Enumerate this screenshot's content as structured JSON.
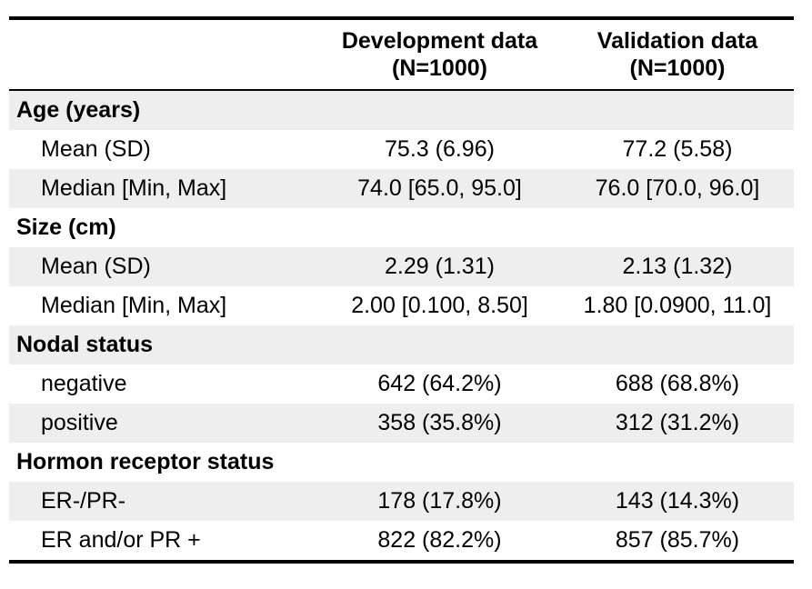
{
  "header": {
    "col_label": "",
    "development": {
      "title": "Development data",
      "n": "(N=1000)"
    },
    "validation": {
      "title": "Validation data",
      "n": "(N=1000)"
    }
  },
  "groups": [
    {
      "title": "Age (years)",
      "rows": [
        {
          "label": "Mean (SD)",
          "development": "75.3 (6.96)",
          "validation": "77.2 (5.58)"
        },
        {
          "label": "Median [Min, Max]",
          "development": "74.0 [65.0, 95.0]",
          "validation": "76.0 [70.0, 96.0]"
        }
      ]
    },
    {
      "title": "Size (cm)",
      "rows": [
        {
          "label": "Mean (SD)",
          "development": "2.29 (1.31)",
          "validation": "2.13 (1.32)"
        },
        {
          "label": "Median [Min, Max]",
          "development": "2.00 [0.100, 8.50]",
          "validation": "1.80 [0.0900, 11.0]"
        }
      ]
    },
    {
      "title": "Nodal status",
      "rows": [
        {
          "label": "negative",
          "development": "642 (64.2%)",
          "validation": "688 (68.8%)"
        },
        {
          "label": "positive",
          "development": "358 (35.8%)",
          "validation": "312 (31.2%)"
        }
      ]
    },
    {
      "title": "Hormon receptor status",
      "rows": [
        {
          "label": "ER-/PR-",
          "development": "178 (17.8%)",
          "validation": "143 (14.3%)"
        },
        {
          "label": "ER and/or PR +",
          "development": "822 (82.2%)",
          "validation": "857 (85.7%)"
        }
      ]
    }
  ]
}
